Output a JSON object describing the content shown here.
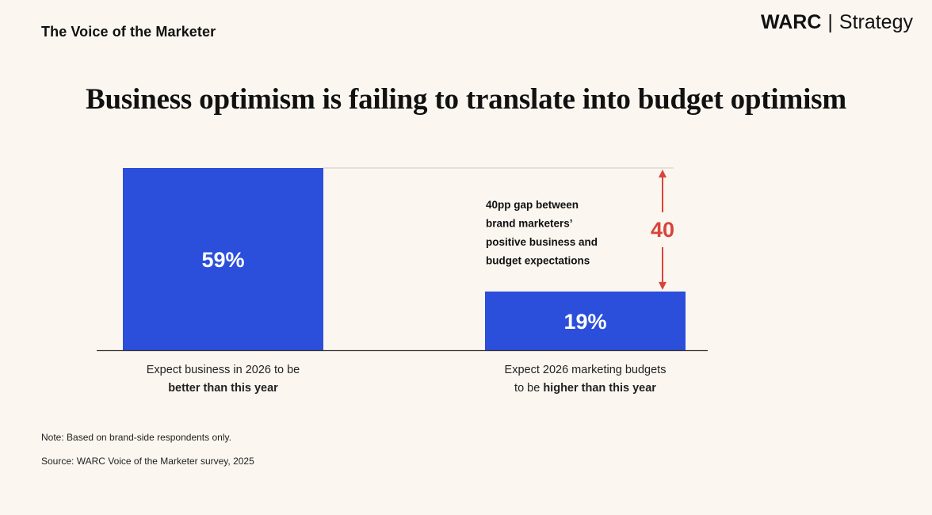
{
  "header": {
    "subtitle": "The Voice of the Marketer",
    "brand_primary": "WARC",
    "brand_separator": "|",
    "brand_secondary": "Strategy"
  },
  "title": "Business optimism is failing to translate into budget optimism",
  "chart_data": {
    "type": "bar",
    "categories": [
      {
        "line1": "Expect business in 2026 to be",
        "line2": "better than this year"
      },
      {
        "line1": "Expect 2026 marketing budgets",
        "line2_prefix": "to be ",
        "line2_bold": "higher than this year"
      }
    ],
    "values": [
      59,
      19
    ],
    "value_labels": [
      "59%",
      "19%"
    ],
    "ylim": [
      0,
      59
    ],
    "colors": {
      "bar": "#2b4fdb",
      "bar_label": "#ffffff",
      "annotation": "#d9443b",
      "axis": "#333333",
      "reference_line": "#cfcac4"
    },
    "annotation": {
      "value_text": "40",
      "lines": [
        "40pp gap between",
        "brand marketers’",
        "positive business and",
        "budget expectations"
      ]
    }
  },
  "footer": {
    "note": "Note: Based on brand-side respondents only.",
    "source": "Source: WARC Voice of the Marketer survey, 2025"
  }
}
